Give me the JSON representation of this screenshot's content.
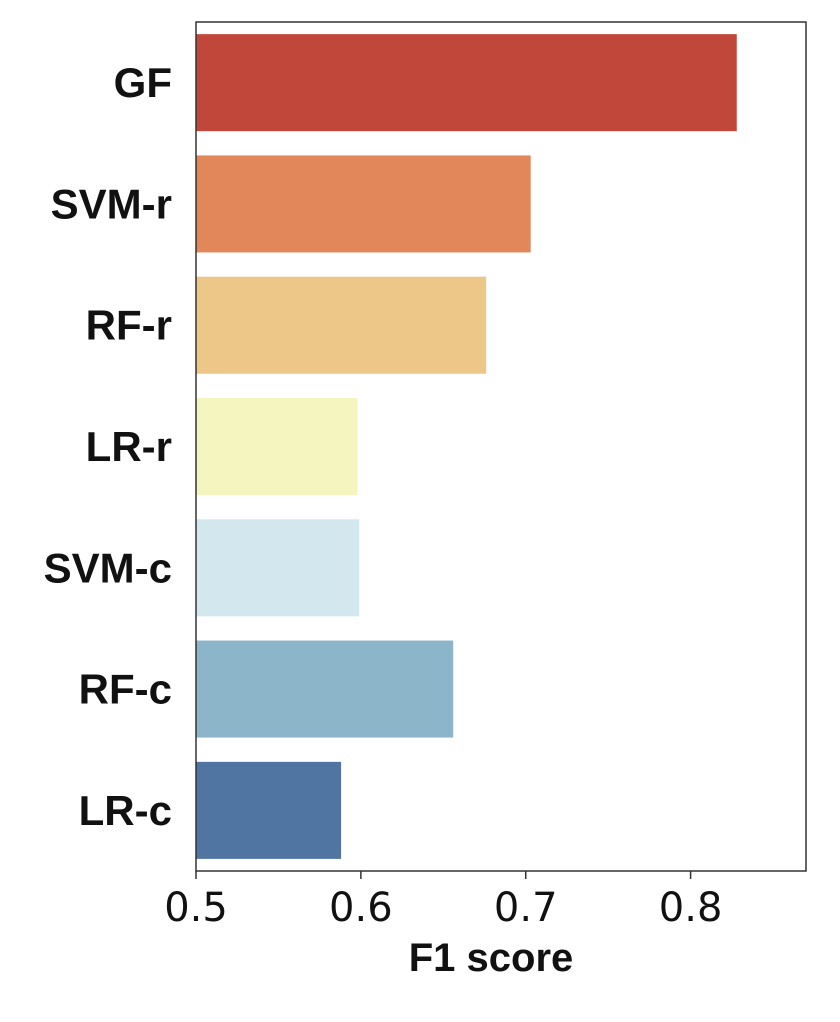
{
  "chart_data": {
    "type": "bar",
    "orientation": "horizontal",
    "categories": [
      "GF",
      "SVM-r",
      "RF-r",
      "LR-r",
      "SVM-c",
      "RF-c",
      "LR-c"
    ],
    "values": [
      0.828,
      0.703,
      0.676,
      0.598,
      0.599,
      0.656,
      0.588
    ],
    "colors": [
      "#c2473b",
      "#e1875a",
      "#ecc787",
      "#f5f6bf",
      "#d3e7ee",
      "#8cb5c9",
      "#5175a3"
    ],
    "title": "",
    "xlabel": "F1 score",
    "ylabel": "",
    "xlim": [
      0.5,
      0.87
    ],
    "xticks": [
      0.5,
      0.6,
      0.7,
      0.8
    ],
    "xtick_labels": [
      "0.5",
      "0.6",
      "0.7",
      "0.8"
    ],
    "grid": false,
    "legend": "none"
  }
}
